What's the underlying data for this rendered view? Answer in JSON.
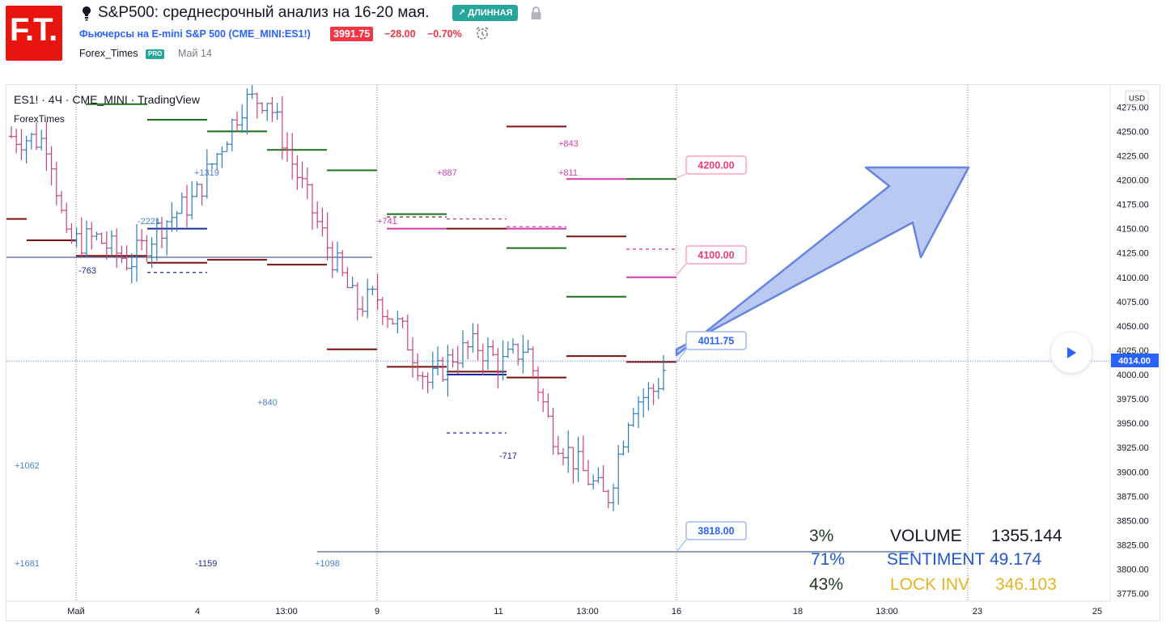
{
  "header": {
    "logo_text": "F.T.",
    "idea_title": "S&P500: среднесрочный анализ на 16-20 мая.",
    "direction_badge": "↗ ДЛИННАЯ",
    "symbol_desc": "Фьючерсы на E-mini S&P 500",
    "symbol_code": "(CME_MINI:ES1!)",
    "price": "3991.75",
    "change": "−28.00",
    "change_pct": "−0.70%",
    "author": "Forex_Times",
    "author_badge": "PRO",
    "publish_date": "Май 14",
    "icons": [
      "lightbulb-icon",
      "lock-icon",
      "alarm-clock-icon",
      "play-icon"
    ]
  },
  "chart": {
    "symbol_line": "ES1! · 4Ч · CME_MINI · TradingView",
    "watermark": "ForexTimes",
    "currency": "USD",
    "y_ticks": [
      "4275.00",
      "4250.00",
      "4225.00",
      "4200.00",
      "4175.00",
      "4150.00",
      "4125.00",
      "4100.00",
      "4075.00",
      "4050.00",
      "4025.00",
      "4000.00",
      "3975.00",
      "3950.00",
      "3925.00",
      "3900.00",
      "3875.00",
      "3850.00",
      "3825.00",
      "3800.00",
      "3775.00"
    ],
    "x_ticks": [
      "Май",
      "4",
      "13:00",
      "9",
      "11",
      "13:00",
      "16",
      "18",
      "13:00",
      "23",
      "25"
    ],
    "current_price_label": "4014.00",
    "price_callouts": [
      "4200.00",
      "4100.00",
      "4011.75",
      "3818.00"
    ],
    "annotations": [
      "+1319",
      "-2221",
      "-763",
      "+741",
      "+887",
      "+843",
      "+811",
      "-717",
      "+840",
      "+1062",
      "+1681",
      "-1159",
      "+1098"
    ],
    "colors": {
      "up": "#2e7dbe",
      "down": "#c9447d",
      "dark_red": "#7b1111",
      "green": "#1b6e1b",
      "magenta": "#d43aa8",
      "navy": "#1a2aa0",
      "arrow_fill": "#b3c3f0",
      "arrow_stroke": "#5d7fe0"
    }
  },
  "stats": {
    "rows": [
      {
        "pct": "3%",
        "label": "VOLUME",
        "value": "1355.144",
        "color": "#131722"
      },
      {
        "pct": "71%",
        "label": "SENTIMENT",
        "value": "49.174",
        "color": "#2157c9"
      },
      {
        "pct": "43%",
        "label": "LOCK INV",
        "value": "346.103",
        "color": "#e6b422"
      }
    ],
    "pct_colors": [
      "#1f3a1f",
      "#2157c9",
      "#1f3a1f"
    ]
  }
}
